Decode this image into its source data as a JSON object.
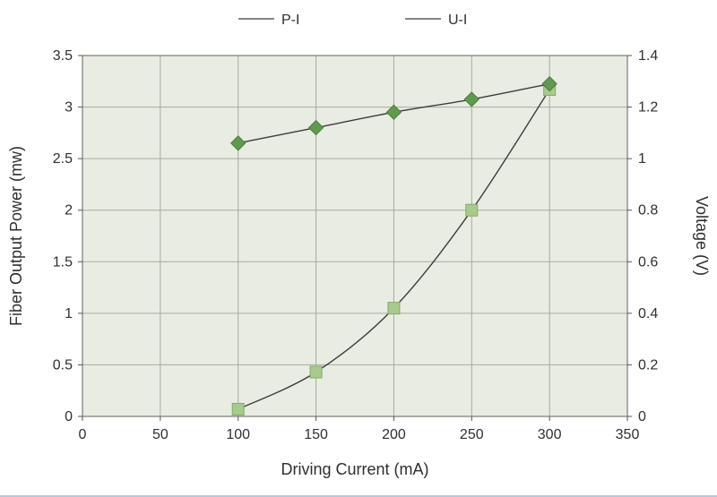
{
  "page": {
    "background": "#ffffff"
  },
  "chart_data": {
    "type": "line",
    "title": "",
    "xlabel": "Driving Current (mA)",
    "ylabel_left": "Fiber Output Power (mw)",
    "ylabel_right": "Voltage (V)",
    "xlim": [
      0,
      350
    ],
    "x_ticks": [
      0,
      50,
      100,
      150,
      200,
      250,
      300,
      350
    ],
    "ylim_left": [
      0,
      3.5
    ],
    "y_ticks_left": [
      0,
      0.5,
      1,
      1.5,
      2,
      2.5,
      3,
      3.5
    ],
    "ylim_right": [
      0,
      1.4
    ],
    "y_ticks_right": [
      0,
      0.2,
      0.4,
      0.6,
      0.8,
      1,
      1.2,
      1.4
    ],
    "grid": true,
    "legend_position": "top-center",
    "plot_bg": "#e9ece3",
    "grid_color": "#a6ac9e",
    "border_color": "#767c70",
    "tick_color": "#555555",
    "text_color": "#2f2f2f",
    "series": [
      {
        "name": "P-I",
        "axis": "left",
        "marker": "square",
        "marker_fill": "#a7ca8d",
        "marker_stroke": "#85a96b",
        "line_color": "#3c3c3c",
        "x": [
          100,
          150,
          200,
          250,
          300
        ],
        "y": [
          0.07,
          0.43,
          1.05,
          2.0,
          3.17
        ]
      },
      {
        "name": "U-I",
        "axis": "right",
        "marker": "diamond",
        "marker_fill": "#5f9a4e",
        "marker_stroke": "#4c7d3e",
        "line_color": "#3c3c3c",
        "x": [
          100,
          150,
          200,
          250,
          300
        ],
        "y": [
          1.06,
          1.12,
          1.18,
          1.23,
          1.29
        ]
      }
    ]
  }
}
